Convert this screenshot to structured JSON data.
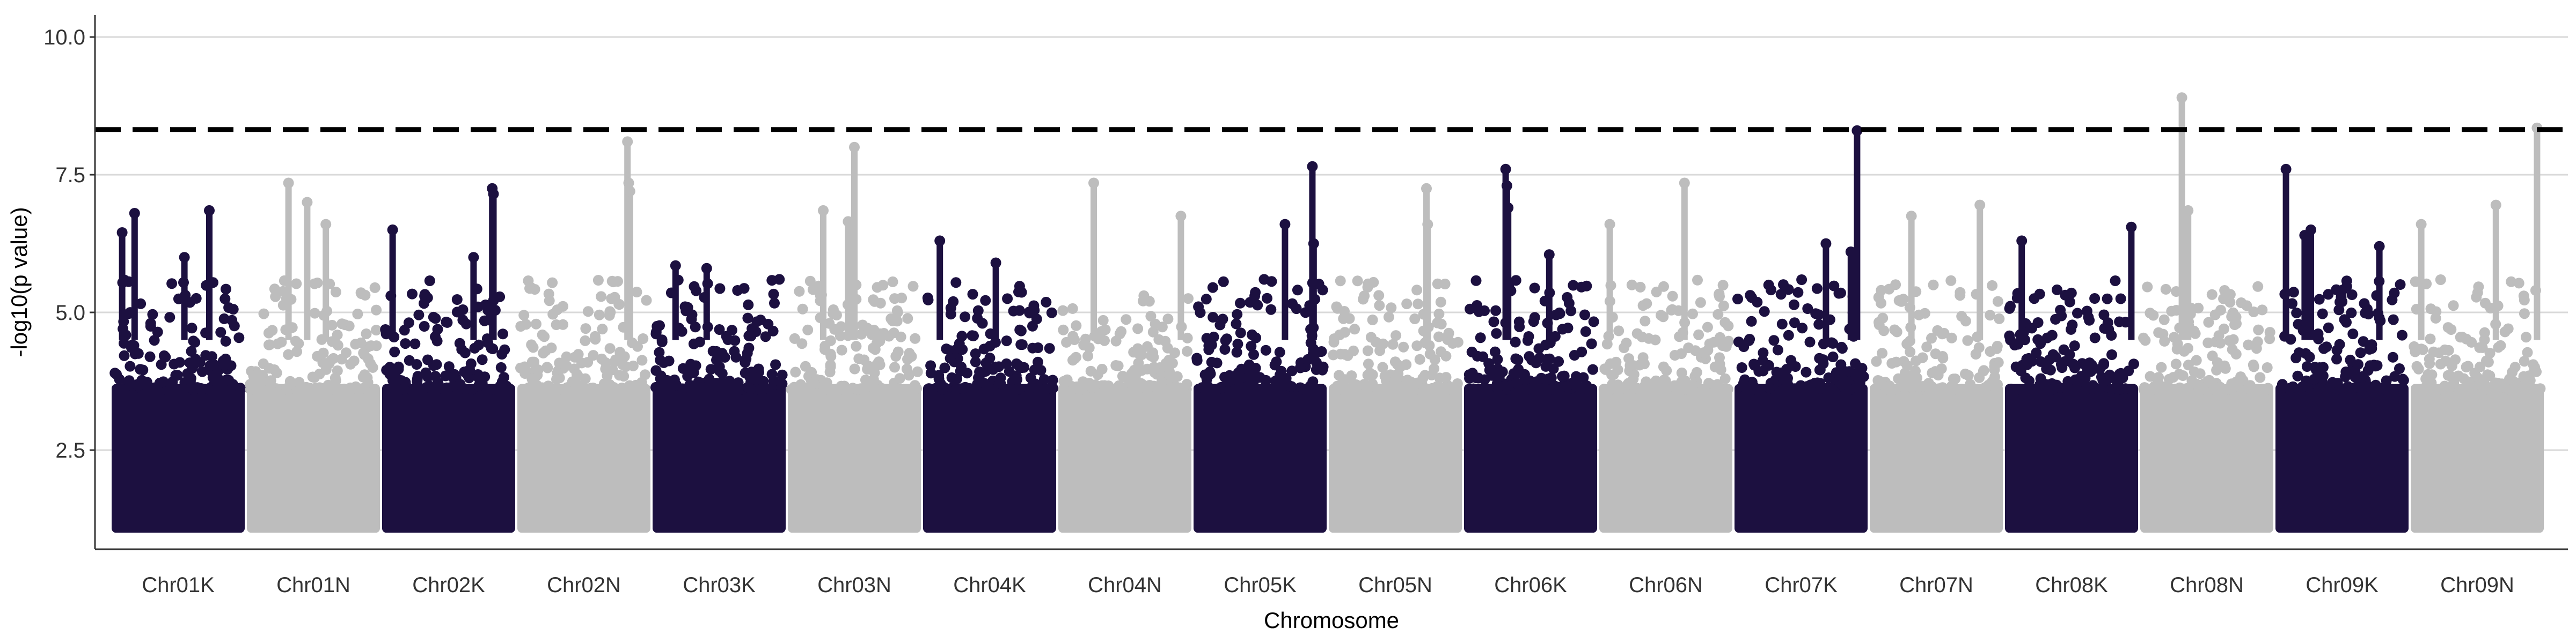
{
  "chart_data": {
    "type": "scatter",
    "title": "",
    "xlabel": "Chromosome",
    "ylabel": "-log10(p value)",
    "ylim": [
      0.7,
      10.4
    ],
    "yticks": [
      2.5,
      5.0,
      7.5,
      10.0
    ],
    "ytick_labels": [
      "2.5",
      "5.0",
      "7.5",
      "10.0"
    ],
    "grid": "horizontal major gridlines",
    "significance_threshold": 8.32,
    "colors": {
      "odd": "#1c1040",
      "even": "#bdbdbd",
      "threshold": "#000000",
      "grid": "#d9d9d9"
    },
    "categories": [
      "Chr01K",
      "Chr01N",
      "Chr02K",
      "Chr02N",
      "Chr03K",
      "Chr03N",
      "Chr04K",
      "Chr04N",
      "Chr05K",
      "Chr05N",
      "Chr06K",
      "Chr06N",
      "Chr07K",
      "Chr07N",
      "Chr08K",
      "Chr08N",
      "Chr09K",
      "Chr09N"
    ],
    "peak_points": [
      {
        "chrom": "Chr01K",
        "pos": 0.05,
        "y": 6.45
      },
      {
        "chrom": "Chr01K",
        "pos": 0.15,
        "y": 6.8
      },
      {
        "chrom": "Chr01K",
        "pos": 0.75,
        "y": 6.85
      },
      {
        "chrom": "Chr01K",
        "pos": 0.55,
        "y": 6.0
      },
      {
        "chrom": "Chr01N",
        "pos": 0.3,
        "y": 7.35
      },
      {
        "chrom": "Chr01N",
        "pos": 0.45,
        "y": 7.0
      },
      {
        "chrom": "Chr01N",
        "pos": 0.6,
        "y": 6.6
      },
      {
        "chrom": "Chr02K",
        "pos": 0.05,
        "y": 6.5
      },
      {
        "chrom": "Chr02K",
        "pos": 0.85,
        "y": 7.25
      },
      {
        "chrom": "Chr02K",
        "pos": 0.86,
        "y": 7.15
      },
      {
        "chrom": "Chr02K",
        "pos": 0.7,
        "y": 6.0
      },
      {
        "chrom": "Chr02N",
        "pos": 0.85,
        "y": 8.1
      },
      {
        "chrom": "Chr02N",
        "pos": 0.86,
        "y": 7.35
      },
      {
        "chrom": "Chr02N",
        "pos": 0.87,
        "y": 7.2
      },
      {
        "chrom": "Chr03K",
        "pos": 0.15,
        "y": 5.85
      },
      {
        "chrom": "Chr03K",
        "pos": 0.4,
        "y": 5.8
      },
      {
        "chrom": "Chr03N",
        "pos": 0.5,
        "y": 8.0
      },
      {
        "chrom": "Chr03N",
        "pos": 0.25,
        "y": 6.85
      },
      {
        "chrom": "Chr03N",
        "pos": 0.45,
        "y": 6.65
      },
      {
        "chrom": "Chr04K",
        "pos": 0.1,
        "y": 6.3
      },
      {
        "chrom": "Chr04K",
        "pos": 0.55,
        "y": 5.9
      },
      {
        "chrom": "Chr04N",
        "pos": 0.25,
        "y": 7.35
      },
      {
        "chrom": "Chr04N",
        "pos": 0.95,
        "y": 6.75
      },
      {
        "chrom": "Chr05K",
        "pos": 0.92,
        "y": 7.65
      },
      {
        "chrom": "Chr05K",
        "pos": 0.7,
        "y": 6.6
      },
      {
        "chrom": "Chr05K",
        "pos": 0.93,
        "y": 6.25
      },
      {
        "chrom": "Chr05N",
        "pos": 0.75,
        "y": 7.25
      },
      {
        "chrom": "Chr05N",
        "pos": 0.76,
        "y": 6.6
      },
      {
        "chrom": "Chr06K",
        "pos": 0.3,
        "y": 7.6
      },
      {
        "chrom": "Chr06K",
        "pos": 0.31,
        "y": 7.3
      },
      {
        "chrom": "Chr06K",
        "pos": 0.32,
        "y": 6.9
      },
      {
        "chrom": "Chr06K",
        "pos": 0.65,
        "y": 6.05
      },
      {
        "chrom": "Chr06N",
        "pos": 0.65,
        "y": 7.35
      },
      {
        "chrom": "Chr06N",
        "pos": 0.05,
        "y": 6.6
      },
      {
        "chrom": "Chr07K",
        "pos": 0.95,
        "y": 8.3
      },
      {
        "chrom": "Chr07K",
        "pos": 0.7,
        "y": 6.25
      },
      {
        "chrom": "Chr07K",
        "pos": 0.9,
        "y": 6.1
      },
      {
        "chrom": "Chr07N",
        "pos": 0.85,
        "y": 6.95
      },
      {
        "chrom": "Chr07N",
        "pos": 0.3,
        "y": 6.75
      },
      {
        "chrom": "Chr08K",
        "pos": 0.1,
        "y": 6.3
      },
      {
        "chrom": "Chr08K",
        "pos": 0.98,
        "y": 6.55
      },
      {
        "chrom": "Chr08N",
        "pos": 0.3,
        "y": 8.9
      },
      {
        "chrom": "Chr08N",
        "pos": 0.35,
        "y": 6.85
      },
      {
        "chrom": "Chr09K",
        "pos": 0.05,
        "y": 7.6
      },
      {
        "chrom": "Chr09K",
        "pos": 0.25,
        "y": 6.5
      },
      {
        "chrom": "Chr09K",
        "pos": 0.2,
        "y": 6.4
      },
      {
        "chrom": "Chr09K",
        "pos": 0.8,
        "y": 6.2
      },
      {
        "chrom": "Chr09N",
        "pos": 0.05,
        "y": 6.6
      },
      {
        "chrom": "Chr09N",
        "pos": 0.65,
        "y": 6.95
      },
      {
        "chrom": "Chr09N",
        "pos": 0.98,
        "y": 8.35
      }
    ]
  }
}
